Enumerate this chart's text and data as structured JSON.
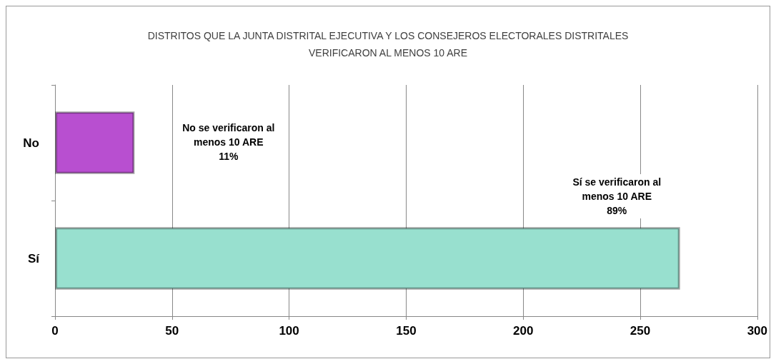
{
  "chart_data": {
    "type": "bar",
    "orientation": "horizontal",
    "title": "DISTRITOS QUE LA JUNTA DISTRITAL EJECUTIVA Y LOS CONSEJEROS ELECTORALES DISTRITALES\nVERIFICARON AL MENOS 10 ARE",
    "categories": [
      "No",
      "Sí"
    ],
    "values": [
      34,
      267
    ],
    "colors": [
      "#b84fd0",
      "#98e0cf"
    ],
    "annotations": [
      "No se verificaron al\nmenos 10 ARE\n11%",
      "Sí se verificaron al\nmenos 10 ARE\n89%"
    ],
    "xlim": [
      0,
      300
    ],
    "xticks": [
      0,
      50,
      100,
      150,
      200,
      250,
      300
    ],
    "grid": "x"
  }
}
